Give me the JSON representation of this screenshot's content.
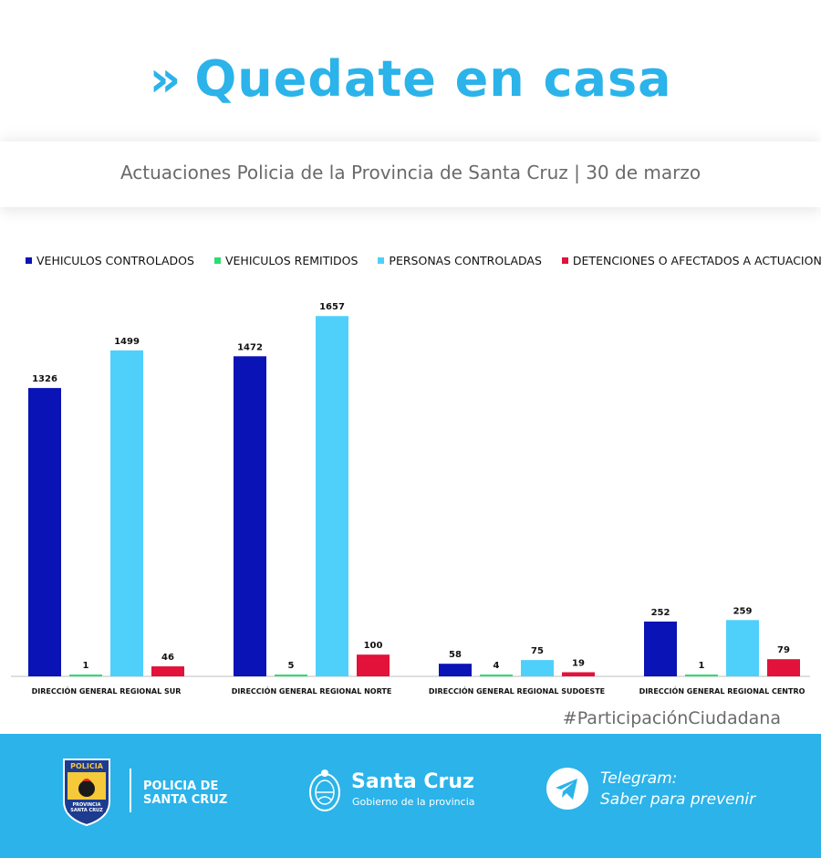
{
  "header": {
    "chevron": "»",
    "title": "Quedate en casa",
    "subtitle": "Actuaciones Policia de la Provincia de Santa Cruz | 30 de marzo"
  },
  "chart_data": {
    "type": "bar",
    "categories": [
      "DIRECCIÓN GENERAL REGIONAL SUR",
      "DIRECCIÓN GENERAL REGIONAL NORTE",
      "DIRECCIÓN GENERAL REGIONAL SUDOESTE",
      "DIRECCIÓN GENERAL REGIONAL CENTRO"
    ],
    "series": [
      {
        "name": "VEHICULOS CONTROLADOS",
        "color": "#0a13b5",
        "values": [
          1326,
          1472,
          58,
          252
        ]
      },
      {
        "name": "VEHICULOS REMITIDOS",
        "color": "#2ddc73",
        "values": [
          1,
          5,
          4,
          1
        ]
      },
      {
        "name": "PERSONAS CONTROLADAS",
        "color": "#4fd0fb",
        "values": [
          1499,
          1657,
          75,
          259
        ]
      },
      {
        "name": "DETENCIONES O AFECTADOS A ACTUACIONES",
        "color": "#e2123b",
        "values": [
          46,
          100,
          19,
          79
        ]
      }
    ],
    "ylim": [
      0,
      1700
    ],
    "legend_position": "top",
    "grid": false
  },
  "footer": {
    "hashtag": "#ParticipaciónCiudadana",
    "police_line1": "POLICIA DE",
    "police_line2": "SANTA CRUZ",
    "logo_top": "POLICIA",
    "logo_band1": "PROVINCIA",
    "logo_band2": "SANTA CRUZ",
    "gov_name": "Santa Cruz",
    "gov_sub": "Gobierno de la provincia",
    "telegram_line1": "Telegram:",
    "telegram_line2": "Saber para prevenir"
  }
}
